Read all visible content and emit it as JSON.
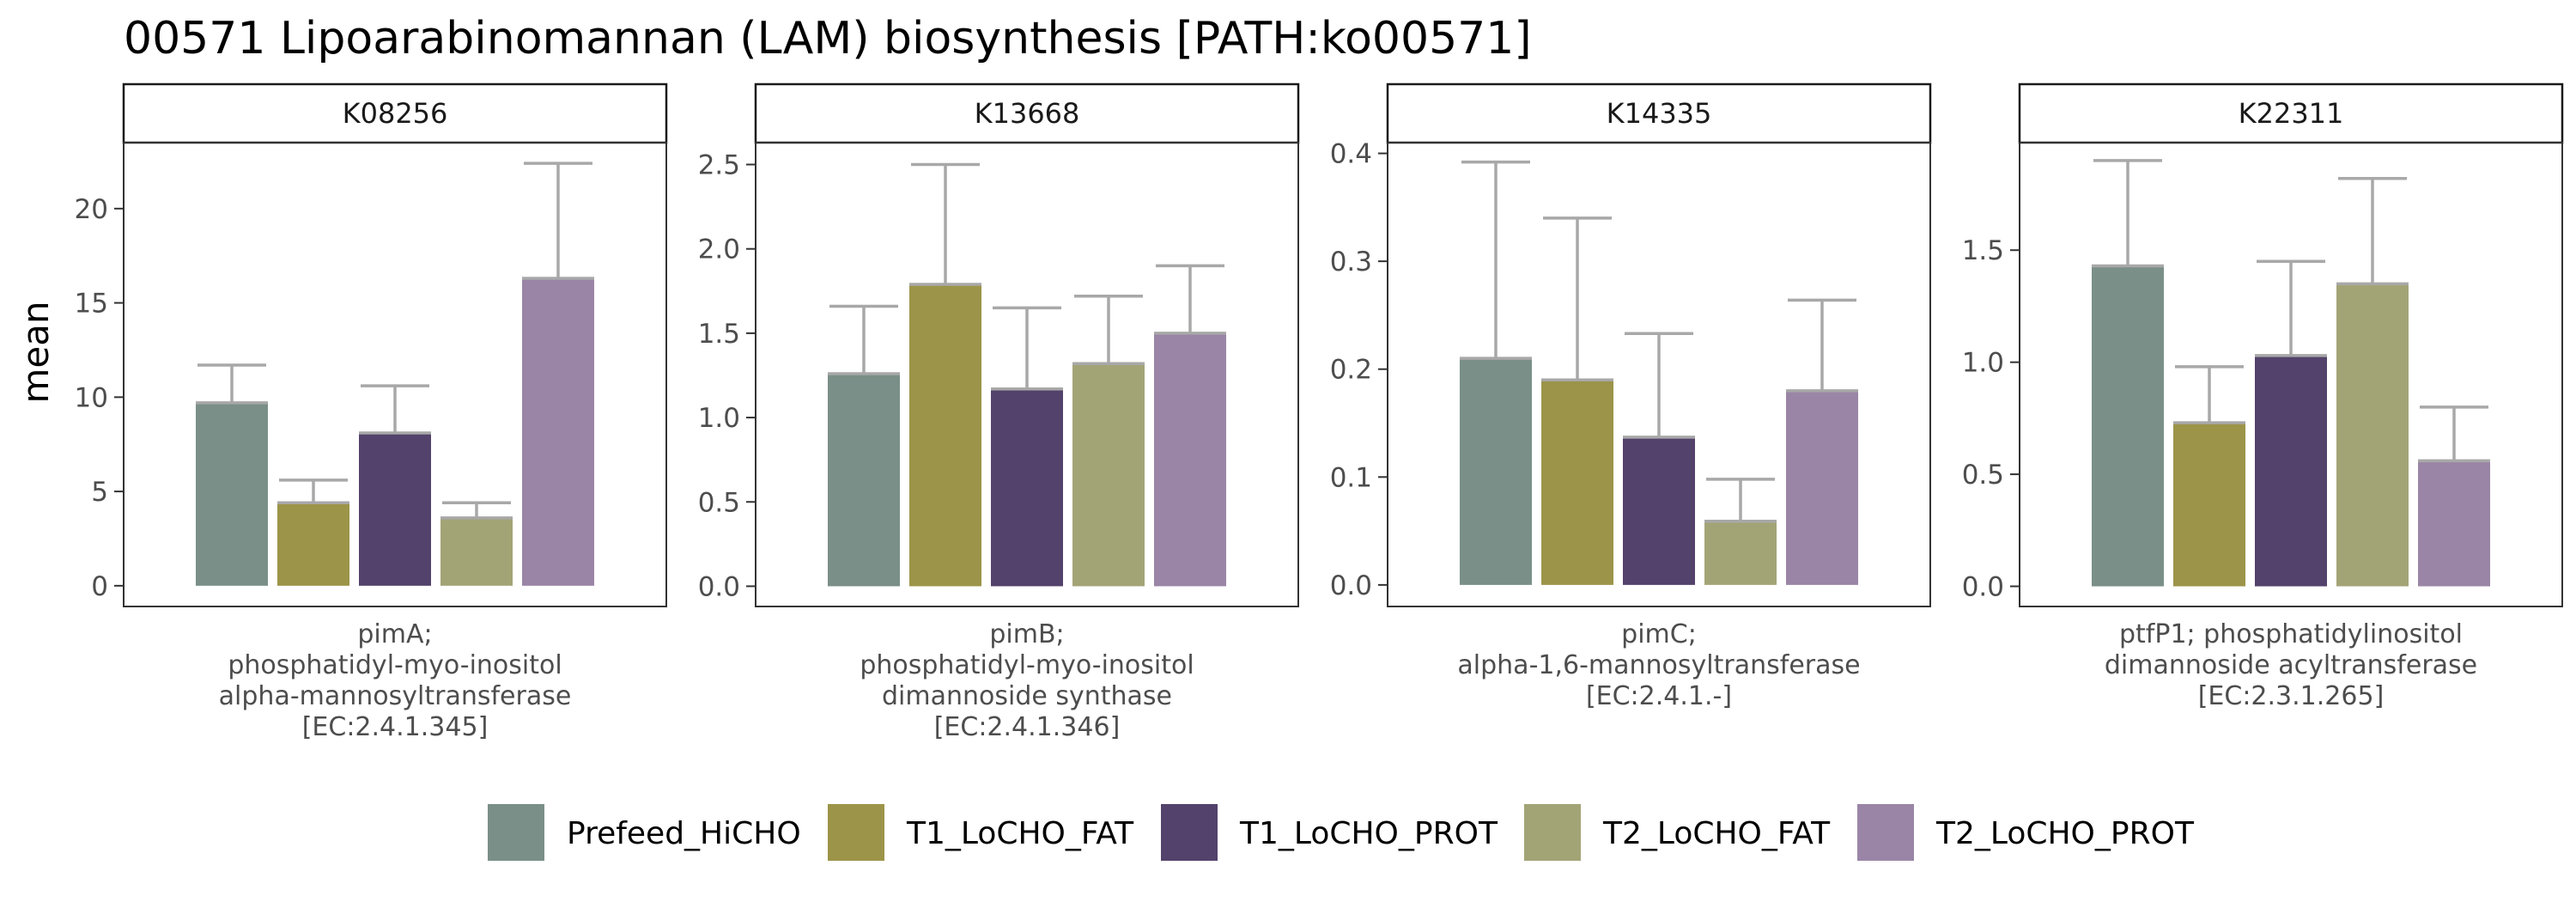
{
  "title": "00571 Lipoarabinomannan (LAM) biosynthesis [PATH:ko00571]",
  "ylabel": "mean",
  "colors": {
    "Prefeed_HiCHO": "#7a8f87",
    "T1_LoCHO_FAT": "#9c9448",
    "T1_LoCHO_PROT": "#53426b",
    "T2_LoCHO_FAT": "#a3a476",
    "T2_LoCHO_PROT": "#9a85a6",
    "error_bar": "#a8a8a8"
  },
  "legend": [
    "Prefeed_HiCHO",
    "T1_LoCHO_FAT",
    "T1_LoCHO_PROT",
    "T2_LoCHO_FAT",
    "T2_LoCHO_PROT"
  ],
  "chart_data": {
    "type": "bar",
    "facets": [
      {
        "strip": "K08256",
        "xlabel_lines": [
          "pimA;",
          "phosphatidyl-myo-inositol",
          "alpha-mannosyltransferase",
          "[EC:2.4.1.345]"
        ],
        "ylim": [
          -1.1,
          23.5
        ],
        "ticks": [
          0,
          5,
          10,
          15,
          20
        ],
        "tick_labels": [
          "0",
          "5",
          "10",
          "15",
          "20"
        ],
        "means": [
          9.7,
          4.4,
          8.1,
          3.6,
          16.3
        ],
        "upper": [
          11.7,
          5.6,
          10.6,
          4.4,
          22.4
        ]
      },
      {
        "strip": "K13668",
        "xlabel_lines": [
          "pimB;",
          "phosphatidyl-myo-inositol",
          "dimannoside synthase",
          "[EC:2.4.1.346]"
        ],
        "ylim": [
          -0.12,
          2.63
        ],
        "ticks": [
          0,
          0.5,
          1,
          1.5,
          2,
          2.5
        ],
        "tick_labels": [
          "0.0",
          "0.5",
          "1.0",
          "1.5",
          "2.0",
          "2.5"
        ],
        "means": [
          1.26,
          1.79,
          1.17,
          1.32,
          1.5
        ],
        "upper": [
          1.66,
          2.5,
          1.65,
          1.72,
          1.9
        ]
      },
      {
        "strip": "K14335",
        "xlabel_lines": [
          "pimC;",
          "alpha-1,6-mannosyltransferase",
          "[EC:2.4.1.-]"
        ],
        "ylim": [
          -0.02,
          0.41
        ],
        "ticks": [
          0,
          0.1,
          0.2,
          0.3,
          0.4
        ],
        "tick_labels": [
          "0.0",
          "0.1",
          "0.2",
          "0.3",
          "0.4"
        ],
        "means": [
          0.21,
          0.19,
          0.137,
          0.059,
          0.18
        ],
        "upper": [
          0.392,
          0.34,
          0.233,
          0.098,
          0.264
        ]
      },
      {
        "strip": "K22311",
        "xlabel_lines": [
          "ptfP1; phosphatidylinositol",
          "dimannoside acyltransferase",
          "[EC:2.3.1.265]"
        ],
        "ylim": [
          -0.09,
          1.98
        ],
        "ticks": [
          0,
          0.5,
          1,
          1.5
        ],
        "tick_labels": [
          "0.0",
          "0.5",
          "1.0",
          "1.5"
        ],
        "means": [
          1.43,
          0.73,
          1.03,
          1.35,
          0.56
        ],
        "upper": [
          1.9,
          0.98,
          1.45,
          1.82,
          0.8
        ]
      }
    ]
  }
}
